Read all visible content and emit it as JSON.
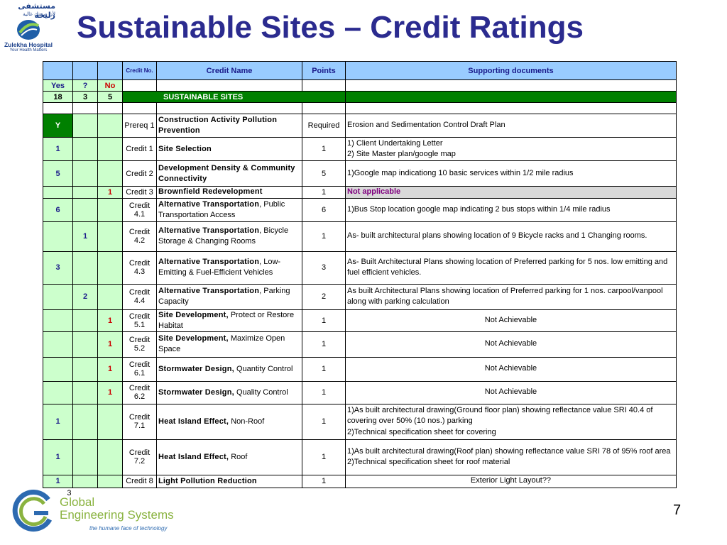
{
  "title": "Sustainable Sites – Credit Ratings",
  "logo_top": {
    "arabic_name": "مستشفى زليخة",
    "arabic_tag": "لأن صحتك غالية",
    "name": "Zulekha Hospital",
    "tagline": "Your Health Matters"
  },
  "logo_bottom": {
    "line1": "Global",
    "line2": "Engineering Systems",
    "tagline": "the humane face of technology"
  },
  "page_number": "7",
  "table": {
    "header": {
      "credit_no": "Credit No.",
      "credit_name": "Credit Name",
      "points": "Points",
      "supporting": "Supporting documents"
    },
    "ynq": {
      "yes": "Yes",
      "q": "?",
      "no": "No"
    },
    "totals": {
      "yes": "18",
      "q": "3",
      "no": "5",
      "section": "SUSTAINABLE SITES"
    },
    "rows": [
      {
        "y": "Y",
        "q": "",
        "n": "",
        "no": "Prereq 1",
        "bold": "Construction Activity Pollution Prevention",
        "rest": "",
        "pts": "Required",
        "doc": "Erosion and Sedimentation Control Draft Plan",
        "center": false,
        "na": false
      },
      {
        "y": "1",
        "q": "",
        "n": "",
        "no": "Credit 1",
        "bold": "Site Selection",
        "rest": "",
        "pts": "1",
        "doc": "1) Client Undertaking Letter\n2) Site Master plan/google map",
        "center": false,
        "na": false
      },
      {
        "y": "5",
        "q": "",
        "n": "",
        "no": "Credit 2",
        "bold": "Development Density & Community Connectivity",
        "rest": "",
        "pts": "5",
        "doc": "1)Google map indicationg 10 basic services within 1/2 mile radius",
        "center": false,
        "na": false
      },
      {
        "y": "",
        "q": "",
        "n": "1",
        "no": "Credit 3",
        "bold": "Brownfield Redevelopment",
        "rest": "",
        "pts": "1",
        "doc": "Not applicable",
        "center": false,
        "na": true
      },
      {
        "y": "6",
        "q": "",
        "n": "",
        "no": "Credit 4.1",
        "bold": "Alternative Transportation",
        "rest": ", Public Transportation Access",
        "pts": "6",
        "doc": "1)Bus Stop location google map indicating 2 bus stops within 1/4 mile radius",
        "center": false,
        "na": false
      },
      {
        "y": "",
        "q": "1",
        "n": "",
        "no": "Credit 4.2",
        "bold": "Alternative Transportation",
        "rest": ", Bicycle Storage & Changing Rooms",
        "pts": "1",
        "doc": "As- built architectural plans showing location of 9 Bicycle racks and 1 Changing rooms.",
        "center": false,
        "na": false
      },
      {
        "y": "3",
        "q": "",
        "n": "",
        "no": "Credit 4.3",
        "bold": "Alternative Transportation",
        "rest": ", Low-Emitting & Fuel-Efficient Vehicles",
        "pts": "3",
        "doc": "As- Built Architectural Plans showing location of Preferred parking for 5 nos. low emitting and fuel efficient vehicles.",
        "center": false,
        "na": false
      },
      {
        "y": "",
        "q": "2",
        "n": "",
        "no": "Credit 4.4",
        "bold": "Alternative Transportation",
        "rest": ", Parking Capacity",
        "pts": "2",
        "doc": "As built Architectural Plans showing location of Preferred parking for 1 nos. carpool/vanpool along with parking calculation",
        "center": false,
        "na": false
      },
      {
        "y": "",
        "q": "",
        "n": "1",
        "no": "Credit 5.1",
        "bold": "Site Development,",
        "rest": " Protect or Restore Habitat",
        "pts": "1",
        "doc": "Not Achievable",
        "center": true,
        "na": false
      },
      {
        "y": "",
        "q": "",
        "n": "1",
        "no": "Credit 5.2",
        "bold": "Site Development,",
        "rest": " Maximize Open Space",
        "pts": "1",
        "doc": "Not Achievable",
        "center": true,
        "na": false
      },
      {
        "y": "",
        "q": "",
        "n": "1",
        "no": "Credit 6.1",
        "bold": "Stormwater Design,",
        "rest": " Quantity Control",
        "pts": "1",
        "doc": "Not Achievable",
        "center": true,
        "na": false
      },
      {
        "y": "",
        "q": "",
        "n": "1",
        "no": "Credit 6.2",
        "bold": "Stormwater Design,",
        "rest": " Quality Control",
        "pts": "1",
        "doc": "Not Achievable",
        "center": true,
        "na": false
      },
      {
        "y": "1",
        "q": "",
        "n": "",
        "no": "Credit 7.1",
        "bold": "Heat Island Effect,",
        "rest": " Non-Roof",
        "pts": "1",
        "doc": "1)As built architectural drawing(Ground floor plan) showing reflectance value SRI 40.4 of covering over 50% (10 nos.) parking\n2)Technical specification sheet for covering",
        "center": false,
        "na": false
      },
      {
        "y": "1",
        "q": "",
        "n": "",
        "no": "Credit 7.2",
        "bold": "Heat Island Effect,",
        "rest": " Roof",
        "pts": "1",
        "doc": "1)As built architectural drawing(Roof plan) showing reflectance value SRI 78 of 95% roof area\n2)Technical specification sheet for roof material",
        "center": false,
        "na": false
      },
      {
        "y": "1",
        "q": "",
        "n": "",
        "no": "Credit 8",
        "bold": "Light Pollution Reduction",
        "rest": "",
        "pts": "1",
        "doc": "Exterior Light Layout??",
        "center": true,
        "na": false
      }
    ],
    "footer_value": "3"
  }
}
